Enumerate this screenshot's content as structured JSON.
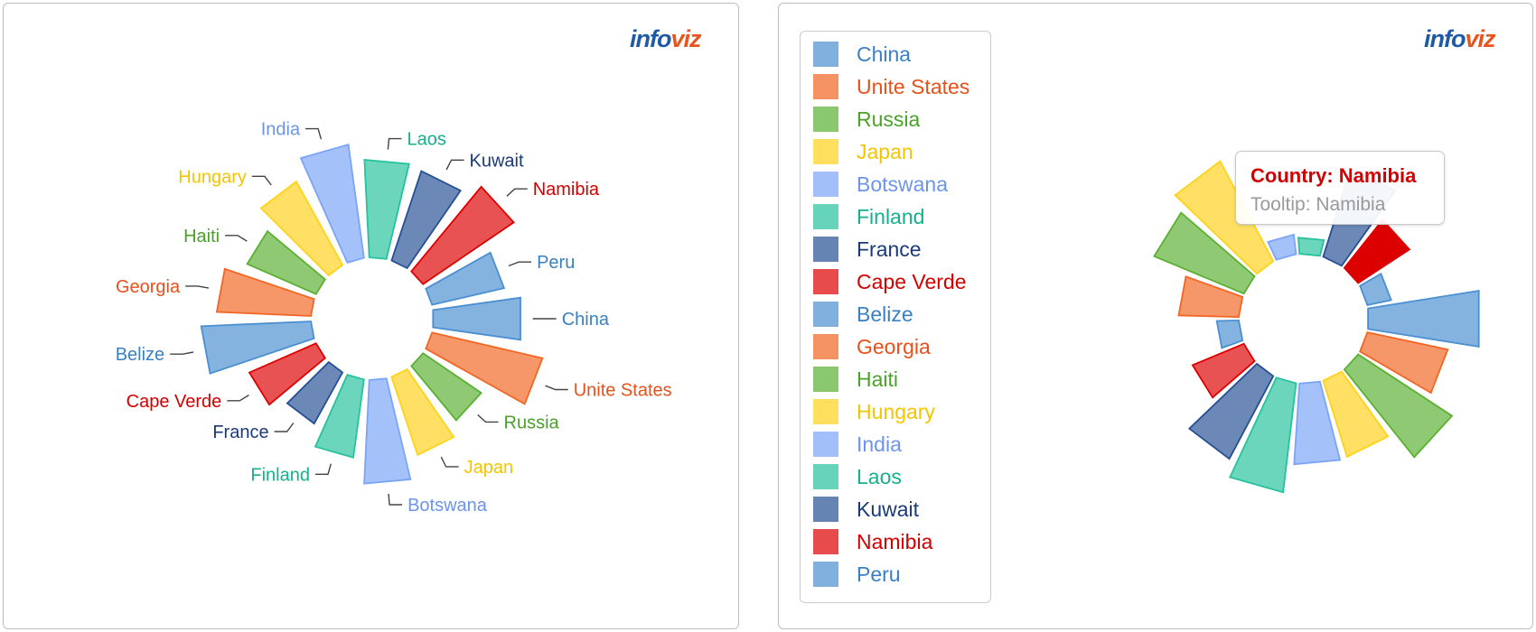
{
  "logo": {
    "part1": "info",
    "part2": "viz"
  },
  "chart_data": [
    {
      "type": "radial-bar",
      "labels_shown": true,
      "categories": [
        "China",
        "Unite States",
        "Russia",
        "Japan",
        "Botswana",
        "Finland",
        "France",
        "Cape Verde",
        "Belize",
        "Georgia",
        "Haiti",
        "Hungary",
        "India",
        "Laos",
        "Kuwait",
        "Namibia",
        "Peru"
      ],
      "values": [
        74,
        95,
        59,
        69,
        87,
        66,
        49,
        61,
        92,
        79,
        63,
        80,
        96,
        82,
        79,
        92,
        62
      ],
      "colors": [
        "#4a8fd1",
        "#f26522",
        "#5ab031",
        "#ffd21a",
        "#7ba4f7",
        "#26c29d",
        "#254f94",
        "#dd0000",
        "#4a8fd1",
        "#f26522",
        "#5ab031",
        "#ffd21a",
        "#7ba4f7",
        "#26c29d",
        "#254f94",
        "#dd0000",
        "#4a8fd1"
      ],
      "label_colors": [
        "#3a80c4",
        "#e8501a",
        "#4aa22a",
        "#f5c400",
        "#6b94ea",
        "#16b08c",
        "#1a3a7a",
        "#d40000",
        "#3a80c4",
        "#e8501a",
        "#4aa22a",
        "#f5c400",
        "#6b94ea",
        "#16b08c",
        "#1a3a7a",
        "#d40000",
        "#3a80c4"
      ]
    },
    {
      "type": "radial-bar",
      "labels_shown": false,
      "categories": [
        "China",
        "Unite States",
        "Russia",
        "Japan",
        "Botswana",
        "Finland",
        "France",
        "Cape Verde",
        "Belize",
        "Georgia",
        "Haiti",
        "Hungary",
        "India",
        "Laos",
        "Kuwait",
        "Namibia",
        "Peru"
      ],
      "values": [
        97,
        71,
        97,
        69,
        70,
        95,
        81,
        48,
        19,
        52,
        84,
        98,
        17,
        14,
        80,
        53,
        21
      ],
      "highlighted": "Namibia"
    }
  ],
  "legend": {
    "items": [
      {
        "label": "China",
        "color": "#4a8fd1",
        "text": "#3a80c4"
      },
      {
        "label": "Unite States",
        "color": "#f26522",
        "text": "#e8501a"
      },
      {
        "label": "Russia",
        "color": "#5ab031",
        "text": "#4aa22a"
      },
      {
        "label": "Japan",
        "color": "#ffd21a",
        "text": "#f5c400"
      },
      {
        "label": "Botswana",
        "color": "#7ba4f7",
        "text": "#6b94ea"
      },
      {
        "label": "Finland",
        "color": "#26c29d",
        "text": "#16b08c"
      },
      {
        "label": "France",
        "color": "#254f94",
        "text": "#1a3a7a"
      },
      {
        "label": "Cape Verde",
        "color": "#dd0000",
        "text": "#d40000"
      },
      {
        "label": "Belize",
        "color": "#4a8fd1",
        "text": "#3a80c4"
      },
      {
        "label": "Georgia",
        "color": "#f26522",
        "text": "#e8501a"
      },
      {
        "label": "Haiti",
        "color": "#5ab031",
        "text": "#4aa22a"
      },
      {
        "label": "Hungary",
        "color": "#ffd21a",
        "text": "#f5c400"
      },
      {
        "label": "India",
        "color": "#7ba4f7",
        "text": "#6b94ea"
      },
      {
        "label": "Laos",
        "color": "#26c29d",
        "text": "#16b08c"
      },
      {
        "label": "Kuwait",
        "color": "#254f94",
        "text": "#1a3a7a"
      },
      {
        "label": "Namibia",
        "color": "#dd0000",
        "text": "#d40000"
      },
      {
        "label": "Peru",
        "color": "#4a8fd1",
        "text": "#3a80c4"
      }
    ]
  },
  "tooltip": {
    "title": "Country: Namibia",
    "body": "Tooltip: Namibia"
  }
}
